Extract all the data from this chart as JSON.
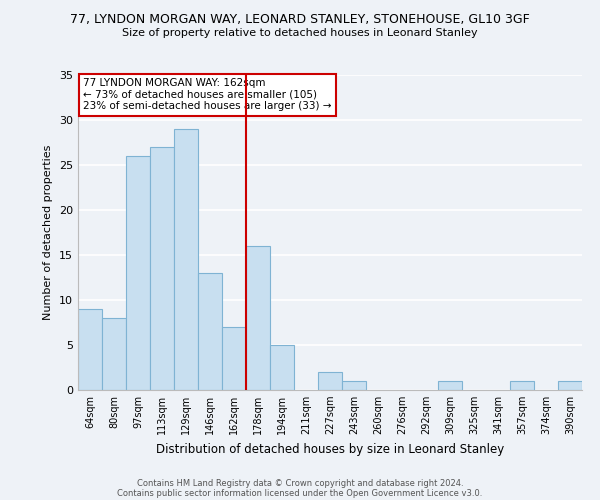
{
  "title_line1": "77, LYNDON MORGAN WAY, LEONARD STANLEY, STONEHOUSE, GL10 3GF",
  "title_line2": "Size of property relative to detached houses in Leonard Stanley",
  "xlabel": "Distribution of detached houses by size in Leonard Stanley",
  "ylabel": "Number of detached properties",
  "bin_labels": [
    "64sqm",
    "80sqm",
    "97sqm",
    "113sqm",
    "129sqm",
    "146sqm",
    "162sqm",
    "178sqm",
    "194sqm",
    "211sqm",
    "227sqm",
    "243sqm",
    "260sqm",
    "276sqm",
    "292sqm",
    "309sqm",
    "325sqm",
    "341sqm",
    "357sqm",
    "374sqm",
    "390sqm"
  ],
  "bar_heights": [
    9,
    8,
    26,
    27,
    29,
    13,
    7,
    16,
    5,
    0,
    2,
    1,
    0,
    0,
    0,
    1,
    0,
    0,
    1,
    0,
    1
  ],
  "bar_color": "#c8dff0",
  "bar_edge_color": "#7fb3d3",
  "highlight_bin_index": 6,
  "highlight_line_color": "#cc0000",
  "ylim": [
    0,
    35
  ],
  "yticks": [
    0,
    5,
    10,
    15,
    20,
    25,
    30,
    35
  ],
  "annotation_title": "77 LYNDON MORGAN WAY: 162sqm",
  "annotation_line2": "← 73% of detached houses are smaller (105)",
  "annotation_line3": "23% of semi-detached houses are larger (33) →",
  "annotation_box_color": "#ffffff",
  "annotation_border_color": "#cc0000",
  "footnote1": "Contains HM Land Registry data © Crown copyright and database right 2024.",
  "footnote2": "Contains public sector information licensed under the Open Government Licence v3.0.",
  "background_color": "#eef2f7"
}
